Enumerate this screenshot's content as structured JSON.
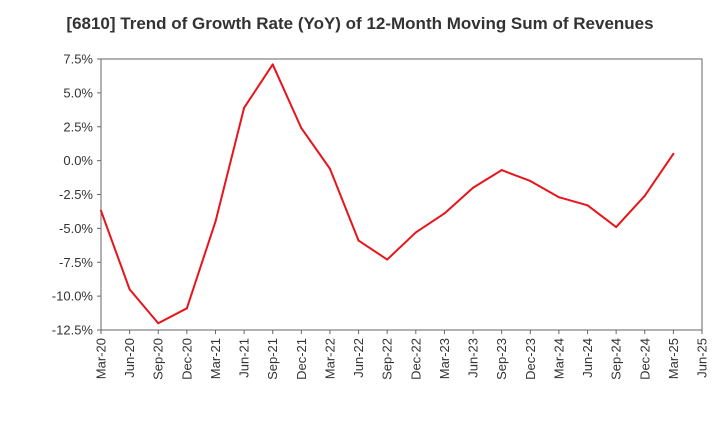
{
  "chart_data": {
    "type": "line",
    "title": "[6810]  Trend of Growth Rate (YoY) of 12-Month Moving Sum of Revenues",
    "xlabel": "",
    "ylabel": "",
    "ylim": [
      -12.5,
      7.5
    ],
    "yticks": [
      7.5,
      5.0,
      2.5,
      0.0,
      -2.5,
      -5.0,
      -7.5,
      -10.0,
      -12.5
    ],
    "ytick_labels": [
      "7.5%",
      "5.0%",
      "2.5%",
      "0.0%",
      "-2.5%",
      "-5.0%",
      "-7.5%",
      "-10.0%",
      "-12.5%"
    ],
    "x_categories": [
      "Mar-20",
      "Jun-20",
      "Sep-20",
      "Dec-20",
      "Mar-21",
      "Jun-21",
      "Sep-21",
      "Dec-21",
      "Mar-22",
      "Jun-22",
      "Sep-22",
      "Dec-22",
      "Mar-23",
      "Jun-23",
      "Sep-23",
      "Dec-23",
      "Mar-24",
      "Jun-24",
      "Sep-24",
      "Dec-24",
      "Mar-25",
      "Jun-25"
    ],
    "grid": true,
    "series": [
      {
        "color": "#e8141c",
        "values": [
          -3.7,
          -9.5,
          -12.0,
          -10.9,
          -4.5,
          3.9,
          7.1,
          2.4,
          -0.6,
          -5.9,
          -7.3,
          -5.3,
          -3.9,
          -2.0,
          -0.7,
          -1.5,
          -2.7,
          -3.3,
          -4.9,
          -2.6,
          0.5,
          null
        ]
      }
    ]
  }
}
